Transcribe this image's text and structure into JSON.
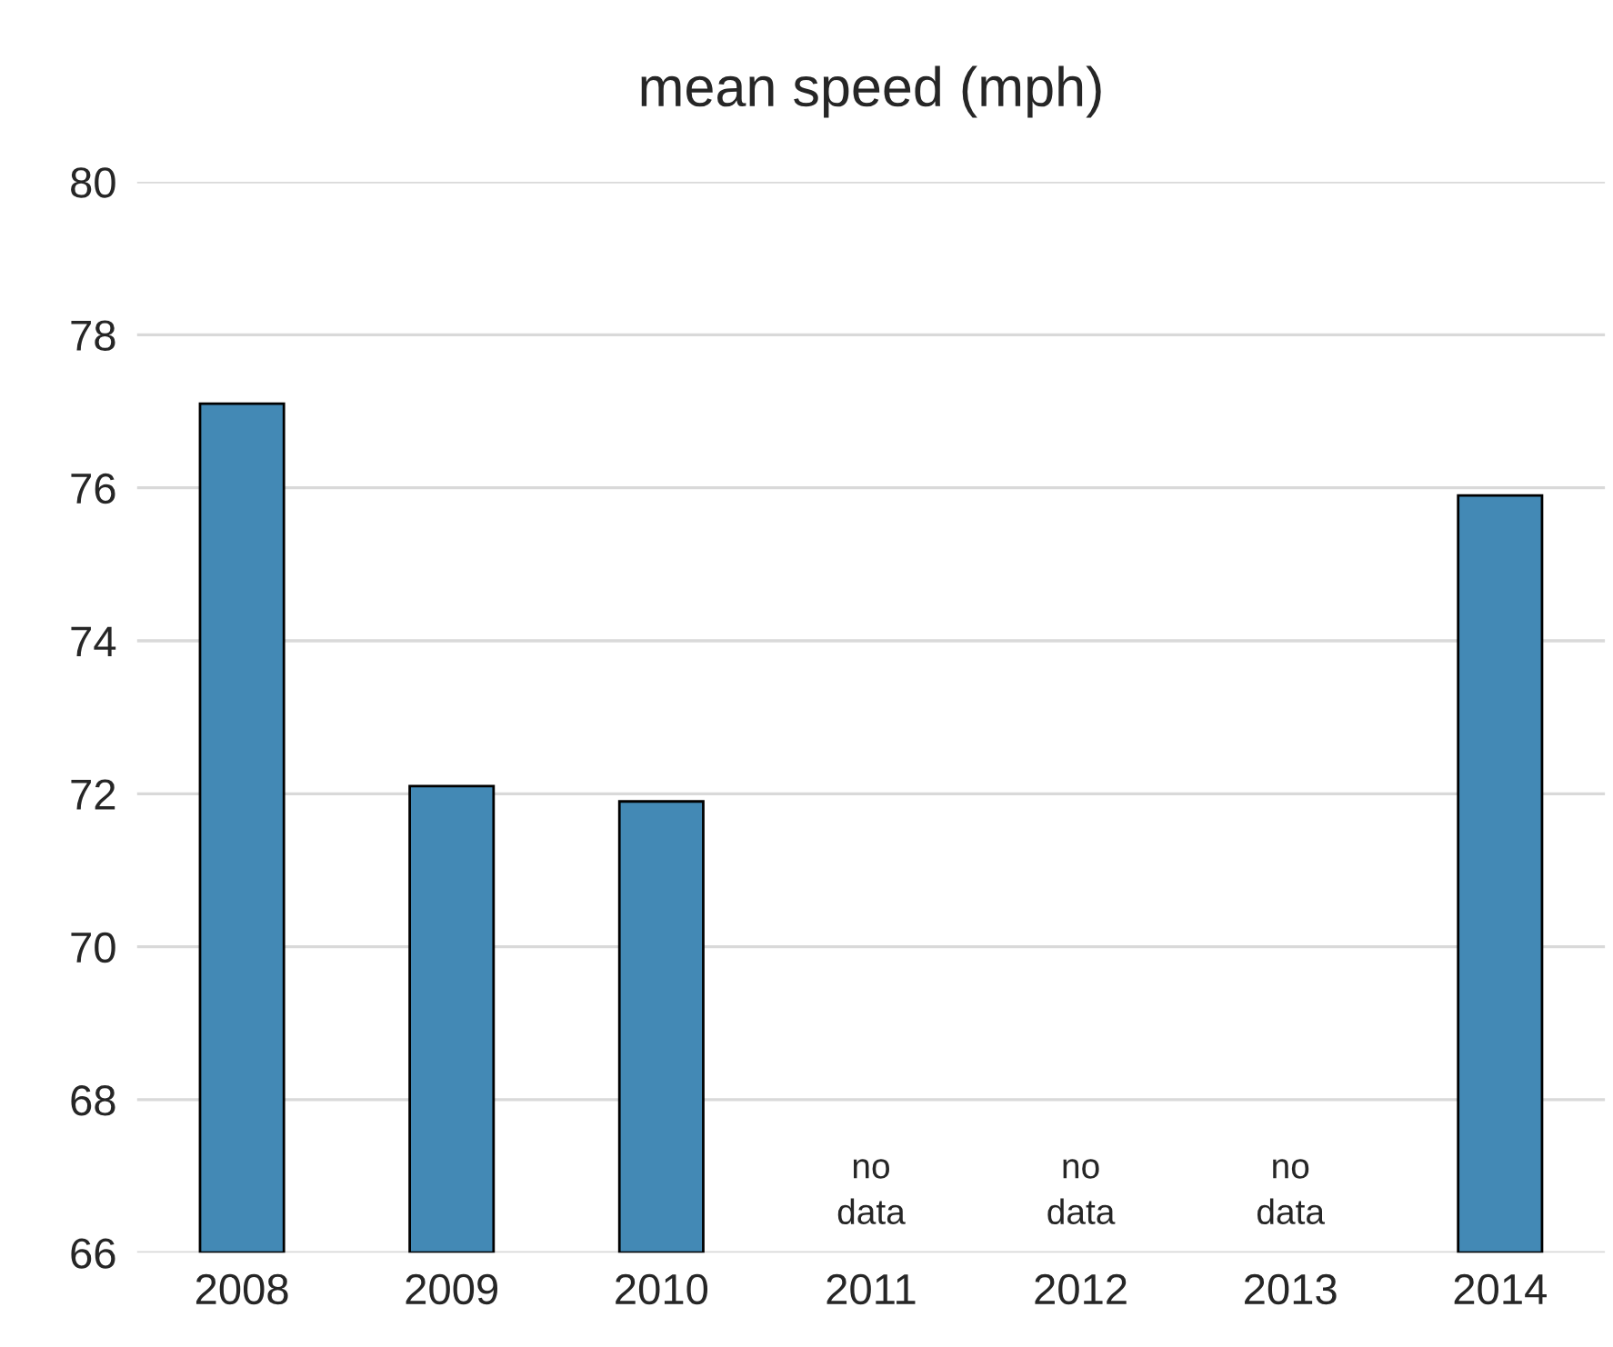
{
  "chart_data": {
    "type": "bar",
    "title": "mean speed (mph)",
    "categories": [
      "2008",
      "2009",
      "2010",
      "2011",
      "2012",
      "2013",
      "2014"
    ],
    "values": [
      77.1,
      72.1,
      71.9,
      null,
      null,
      null,
      75.9
    ],
    "color": "#4389b5",
    "ylim": [
      66,
      80
    ],
    "yticks": [
      66,
      68,
      70,
      72,
      74,
      76,
      78,
      80
    ],
    "grid": "y",
    "annotations": [
      "no\ndata",
      "no\ndata",
      "no\ndata"
    ]
  }
}
